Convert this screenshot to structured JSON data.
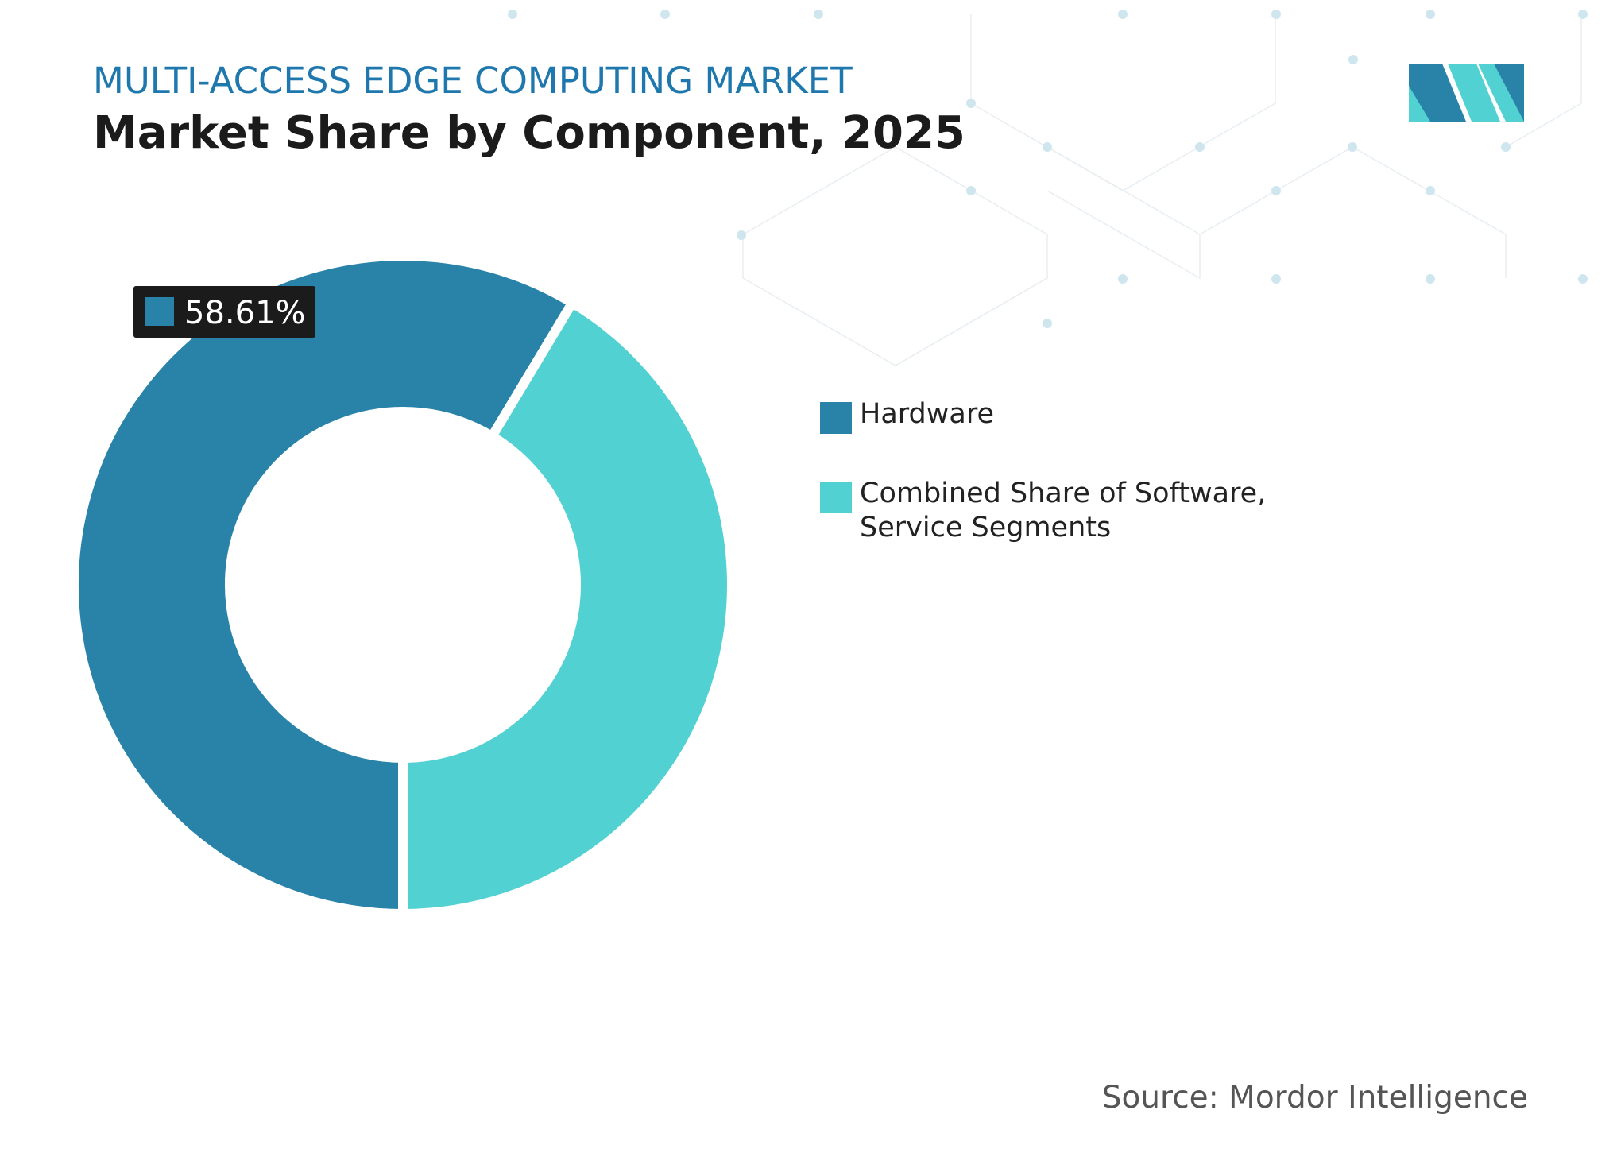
{
  "chart_data": {
    "type": "donut",
    "subtitle": "MULTI-ACCESS EDGE COMPUTING MARKET",
    "title": "Market Share by Component, 2025",
    "categories": [
      "Hardware",
      "Combined Share of Software, Service Segments"
    ],
    "values": [
      58.61,
      41.39
    ],
    "value_labels": [
      "58.61%",
      null
    ],
    "colors": [
      "#2983a8",
      "#52d1d3"
    ],
    "source": "Source: Mordor Intelligence"
  }
}
